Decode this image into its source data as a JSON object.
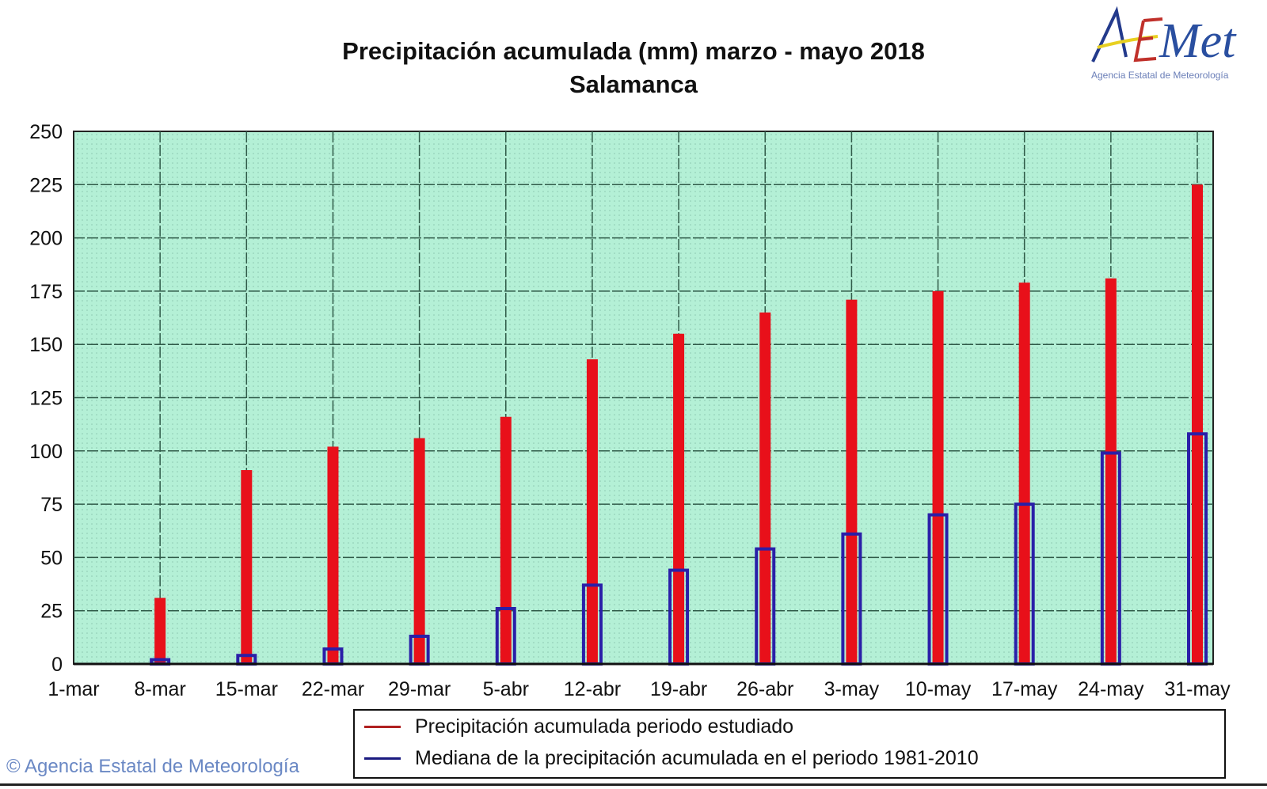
{
  "chart_data": {
    "type": "bar",
    "title": "Precipitación acumulada (mm) marzo - mayo 2018",
    "subtitle": "Salamanca",
    "xlabel": "",
    "ylabel": "",
    "categories": [
      "1-mar",
      "8-mar",
      "15-mar",
      "22-mar",
      "29-mar",
      "5-abr",
      "12-abr",
      "19-abr",
      "26-abr",
      "3-may",
      "10-may",
      "17-may",
      "24-may",
      "31-may"
    ],
    "ylim": [
      0,
      250
    ],
    "yticks": [
      0,
      25,
      50,
      75,
      100,
      125,
      150,
      175,
      200,
      225,
      250
    ],
    "grid": true,
    "legend_position": "bottom",
    "series": [
      {
        "name": "Precipitación acumulada periodo estudiado",
        "color": "#e8101a",
        "values": [
          0,
          31,
          91,
          102,
          106,
          116,
          143,
          155,
          165,
          171,
          175,
          179,
          181,
          225
        ]
      },
      {
        "name": "Mediana de la precipitación acumulada en el periodo 1981-2010",
        "color": "#2a1fa8",
        "values": [
          0,
          2,
          4,
          7,
          13,
          26,
          37,
          44,
          54,
          61,
          70,
          75,
          99,
          108
        ]
      }
    ],
    "plot_background": "#b4f0d6"
  },
  "logo": {
    "text": "AEMet",
    "subtitle": "Agencia Estatal de Meteorología"
  },
  "footer": "© Agencia Estatal de Meteorología"
}
